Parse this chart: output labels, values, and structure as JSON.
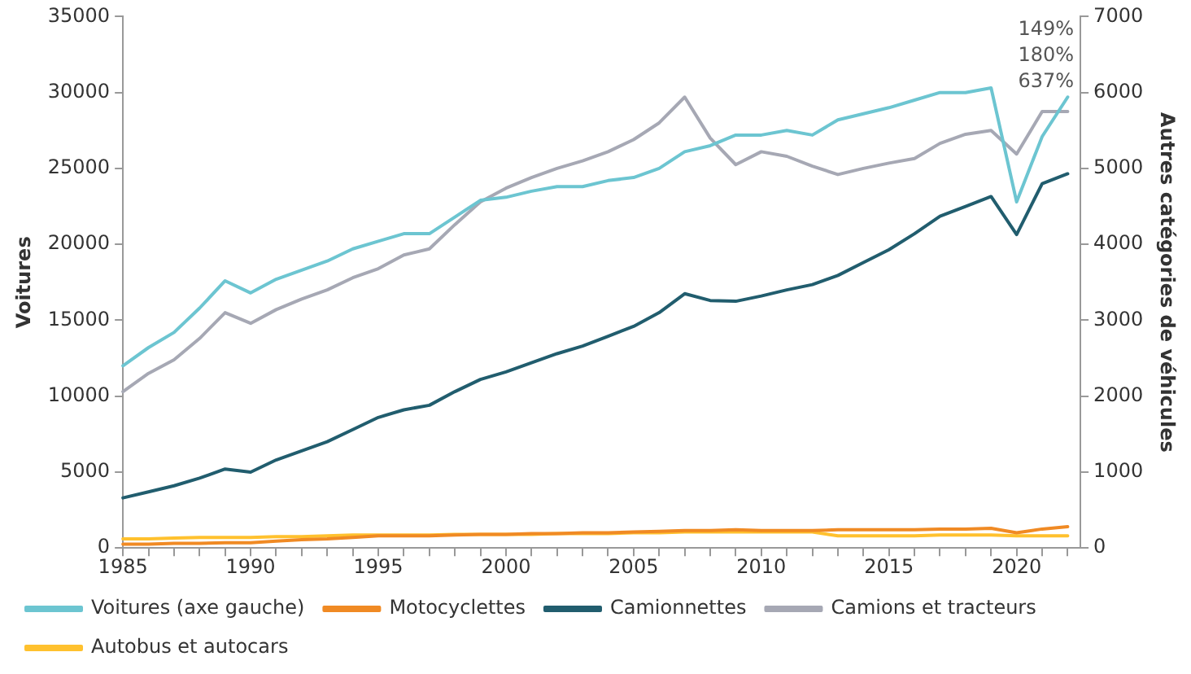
{
  "chart_data": {
    "type": "line",
    "ylabel": "Voitures",
    "y2label": "Autres catégories de véhicules",
    "x": [
      1985,
      1986,
      1987,
      1988,
      1989,
      1990,
      1991,
      1992,
      1993,
      1994,
      1995,
      1996,
      1997,
      1998,
      1999,
      2000,
      2001,
      2002,
      2003,
      2004,
      2005,
      2006,
      2007,
      2008,
      2009,
      2010,
      2011,
      2012,
      2013,
      2014,
      2015,
      2016,
      2017,
      2018,
      2019,
      2020,
      2021,
      2022
    ],
    "series": [
      {
        "name": "Voitures (axe gauche)",
        "color": "#6cc5d1",
        "values": [
          12000,
          13200,
          14200,
          15800,
          17600,
          16800,
          17700,
          18300,
          18900,
          19700,
          20200,
          20700,
          20700,
          21800,
          22900,
          23100,
          23500,
          23800,
          23800,
          24200,
          24400,
          25000,
          26100,
          26500,
          27200,
          27200,
          27500,
          27200,
          28200,
          28600,
          29000,
          29500,
          30000,
          30000,
          30300,
          22800,
          27100,
          29700
        ]
      },
      {
        "name": "Motocyclettes",
        "color": "#f08a24",
        "axis": "y2",
        "values": [
          50,
          50,
          60,
          60,
          70,
          70,
          90,
          110,
          120,
          140,
          160,
          160,
          160,
          170,
          180,
          180,
          190,
          190,
          200,
          200,
          210,
          220,
          230,
          230,
          240,
          230,
          230,
          230,
          240,
          240,
          240,
          240,
          250,
          250,
          260,
          200,
          250,
          280
        ]
      },
      {
        "name": "Camionnettes",
        "color": "#215d6e",
        "axis": "y2",
        "values": [
          660,
          740,
          820,
          920,
          1040,
          1000,
          1160,
          1280,
          1400,
          1560,
          1720,
          1820,
          1880,
          2060,
          2220,
          2320,
          2440,
          2560,
          2660,
          2790,
          2920,
          3100,
          3350,
          3260,
          3250,
          3320,
          3400,
          3470,
          3590,
          3760,
          3930,
          4140,
          4370,
          4500,
          4630,
          4130,
          4800,
          4930
        ]
      },
      {
        "name": "Camions et tracteurs",
        "color": "#a6a8b4",
        "axis": "y2",
        "values": [
          2060,
          2300,
          2480,
          2760,
          3100,
          2960,
          3140,
          3280,
          3400,
          3560,
          3680,
          3860,
          3940,
          4260,
          4560,
          4740,
          4880,
          5000,
          5100,
          5220,
          5380,
          5600,
          5940,
          5400,
          5050,
          5220,
          5160,
          5030,
          4920,
          5000,
          5070,
          5130,
          5330,
          5450,
          5500,
          5190,
          5750,
          5750
        ]
      },
      {
        "name": "Autobus et autocars",
        "color": "#ffc12e",
        "axis": "y2",
        "values": [
          120,
          120,
          130,
          140,
          140,
          140,
          150,
          150,
          160,
          170,
          170,
          170,
          170,
          180,
          180,
          180,
          180,
          190,
          190,
          190,
          200,
          200,
          210,
          210,
          210,
          210,
          210,
          210,
          160,
          160,
          160,
          160,
          170,
          170,
          170,
          160,
          160,
          160
        ]
      }
    ],
    "annotations": [
      "149%",
      "180%",
      "637%"
    ],
    "xlim": [
      1985,
      2022.5
    ],
    "xticks": [
      1985,
      {
        "value": 1986,
        "label": null
      },
      {
        "value": 1987,
        "label": null
      },
      {
        "value": 1988,
        "label": null
      },
      {
        "value": 1989,
        "label": null
      },
      1990,
      {
        "value": 1991,
        "label": null
      },
      {
        "value": 1992,
        "label": null
      },
      {
        "value": 1993,
        "label": null
      },
      {
        "value": 1994,
        "label": null
      },
      1995,
      {
        "value": 1996,
        "label": null
      },
      {
        "value": 1997,
        "label": null
      },
      {
        "value": 1998,
        "label": null
      },
      {
        "value": 1999,
        "label": null
      },
      2000,
      {
        "value": 2001,
        "label": null
      },
      {
        "value": 2002,
        "label": null
      },
      {
        "value": 2003,
        "label": null
      },
      {
        "value": 2004,
        "label": null
      },
      2005,
      {
        "value": 2006,
        "label": null
      },
      {
        "value": 2007,
        "label": null
      },
      {
        "value": 2008,
        "label": null
      },
      {
        "value": 2009,
        "label": null
      },
      2010,
      {
        "value": 2011,
        "label": null
      },
      {
        "value": 2012,
        "label": null
      },
      {
        "value": 2013,
        "label": null
      },
      {
        "value": 2014,
        "label": null
      },
      2015,
      {
        "value": 2016,
        "label": null
      },
      {
        "value": 2017,
        "label": null
      },
      {
        "value": 2018,
        "label": null
      },
      {
        "value": 2019,
        "label": null
      },
      2020,
      {
        "value": 2021,
        "label": null
      },
      {
        "value": 2022,
        "label": null
      }
    ],
    "ylim": [
      0,
      35000
    ],
    "yticks": [
      0,
      5000,
      10000,
      15000,
      20000,
      25000,
      30000,
      35000
    ],
    "y2lim": [
      0,
      7000
    ],
    "y2ticks": [
      0,
      1000,
      2000,
      3000,
      4000,
      5000,
      6000,
      7000
    ],
    "grid": false,
    "legend": "bottom",
    "marker": "none",
    "line_style": "solid"
  }
}
